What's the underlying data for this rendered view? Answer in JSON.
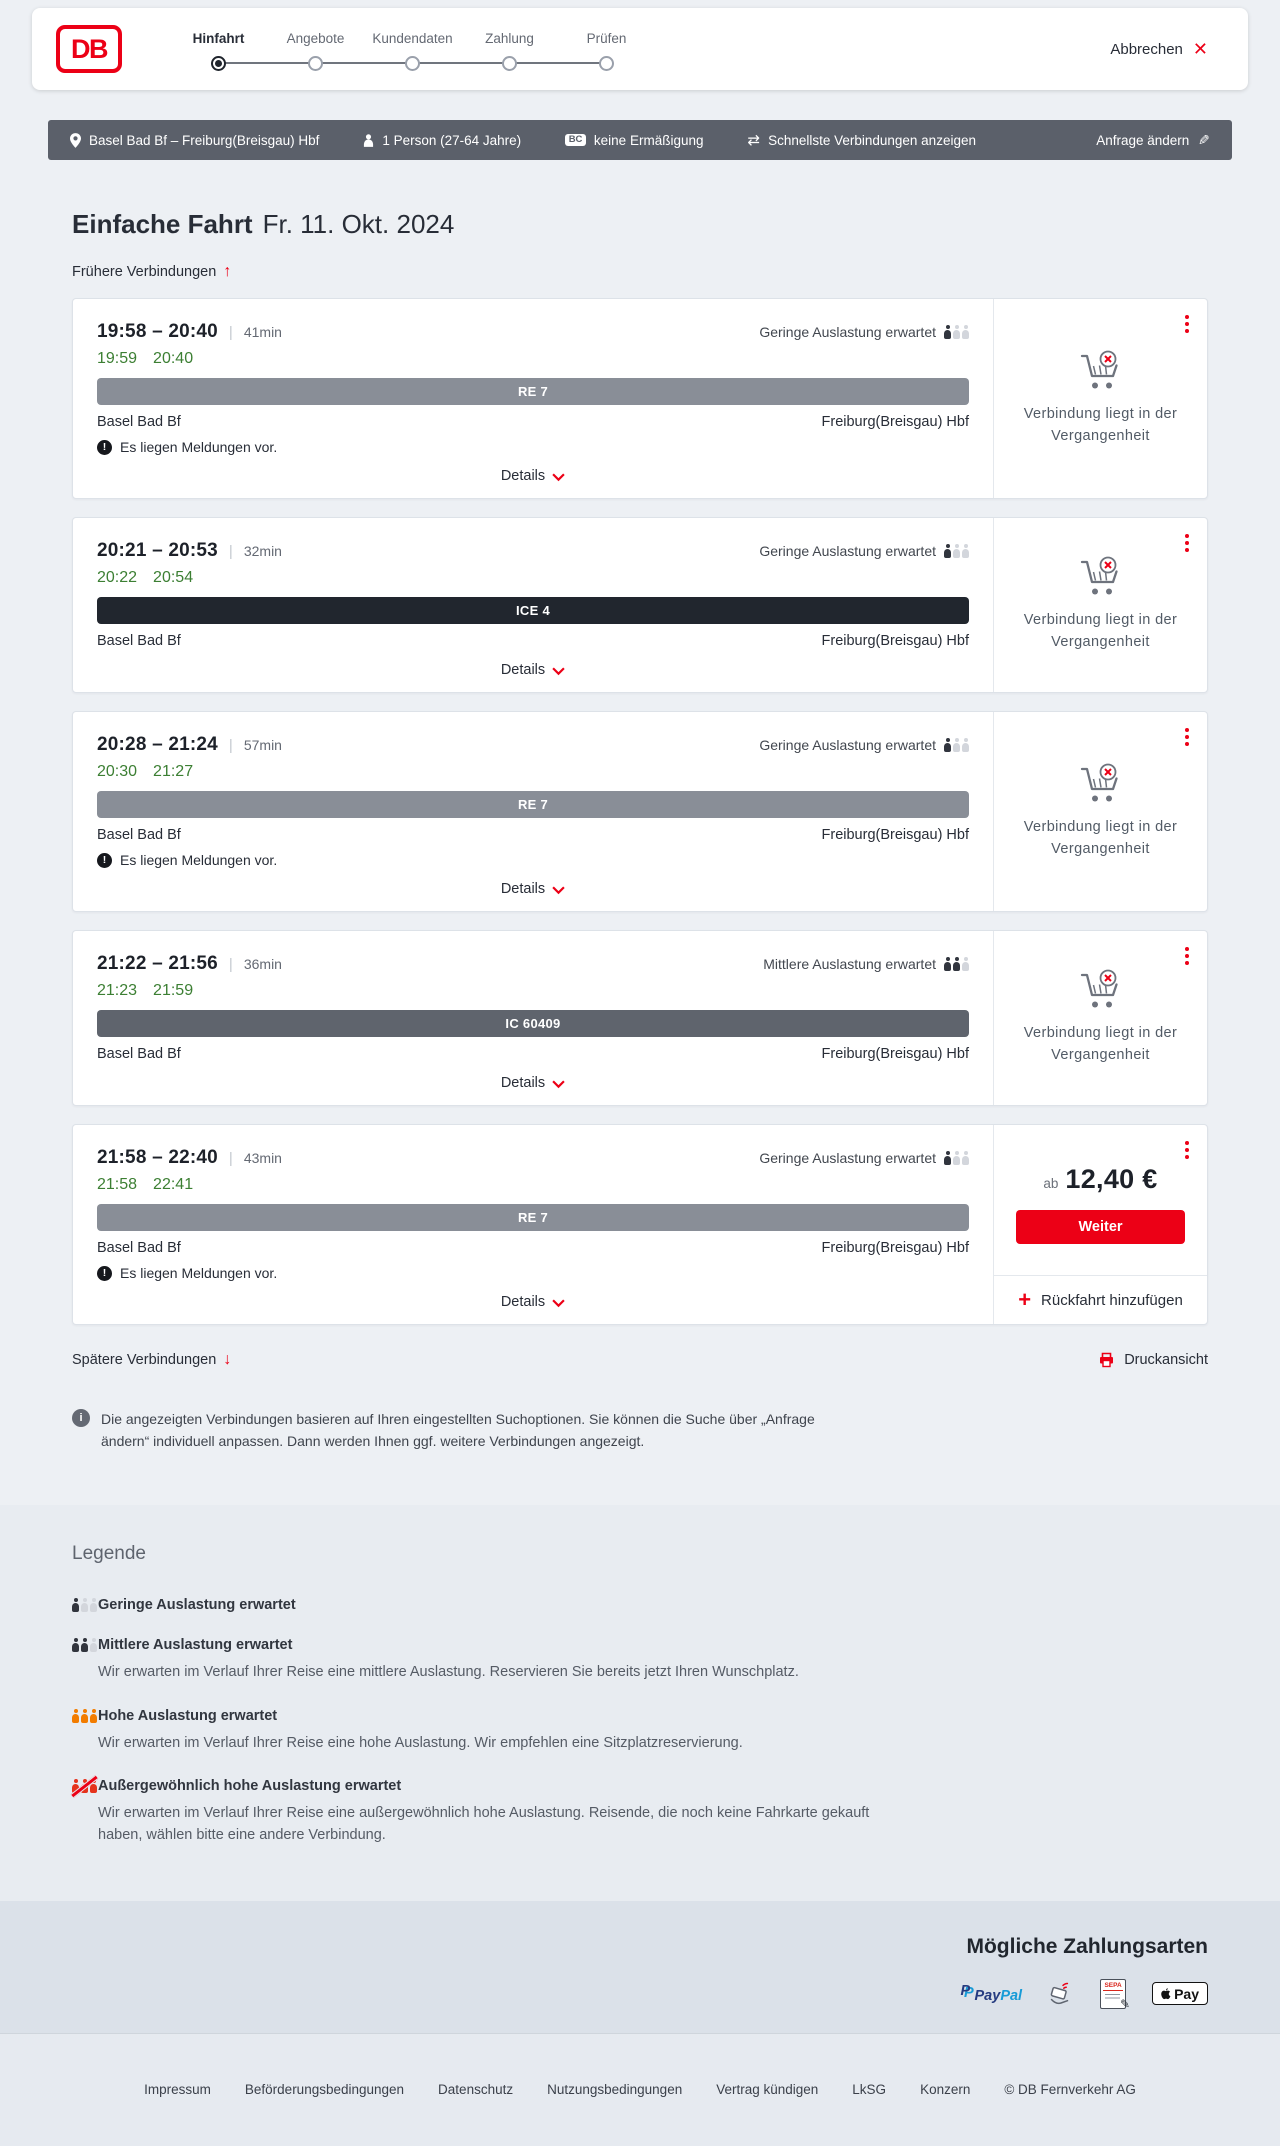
{
  "colors": {
    "db_red": "#ec0016",
    "dark": "#282d37",
    "green_ontime": "#3c7f33",
    "bar_re": "#898e97",
    "bar_ice": "#21262e",
    "bar_ic": "#5f646d",
    "occupancy_orange": "#f27c00",
    "querybar_bg": "#5b606a"
  },
  "icons": {
    "cancel_x": "✕",
    "swap": "⇄",
    "pencil": "✎",
    "earlier_arrow": "↑",
    "later_arrow": "↓",
    "plus": "+",
    "info": "i",
    "warning": "!",
    "sepa_pen": "✎"
  },
  "header": {
    "logo": "DB",
    "steps": [
      {
        "label": "Hinfahrt",
        "active": true
      },
      {
        "label": "Angebote"
      },
      {
        "label": "Kundendaten"
      },
      {
        "label": "Zahlung"
      },
      {
        "label": "Prüfen"
      }
    ],
    "cancel_label": "Abbrechen"
  },
  "querybar": {
    "route": "Basel Bad Bf – Freiburg(Breisgau) Hbf",
    "passengers": "1 Person (27-64 Jahre)",
    "bc_badge": "BC",
    "discount": "keine Ermäßigung",
    "fastest": "Schnellste Verbindungen anzeigen",
    "change_request": "Anfrage ändern"
  },
  "results": {
    "title": "Einfache Fahrt",
    "date": "Fr. 11. Okt. 2024",
    "earlier": "Frühere Verbindungen",
    "later": "Spätere Verbindungen",
    "print": "Druckansicht",
    "info_note": "Die angezeigten Verbindungen basieren auf Ihren eingestellten Suchoptionen. Sie können die Suche über „Anfrage ändern“ individuell anpassen. Dann werden Ihnen ggf. weitere Verbindungen angezeigt.",
    "connections": [
      {
        "time": "19:58 – 20:40",
        "duration": "41min",
        "occupancy": "Geringe Auslastung erwartet",
        "occ_level": 1,
        "rt_dep": "19:59",
        "rt_arr": "20:40",
        "train": "RE 7",
        "train_style": "gray",
        "from": "Basel Bad Bf",
        "to": "Freiburg(Breisgau) Hbf",
        "message": "Es liegen Meldungen vor.",
        "side_text": "Verbindung liegt in der Vergangenheit"
      },
      {
        "time": "20:21 – 20:53",
        "duration": "32min",
        "occupancy": "Geringe Auslastung erwartet",
        "occ_level": 1,
        "rt_dep": "20:22",
        "rt_arr": "20:54",
        "train": "ICE 4",
        "train_style": "dark",
        "from": "Basel Bad Bf",
        "to": "Freiburg(Breisgau) Hbf",
        "message": "",
        "side_text": "Verbindung liegt in der Vergangenheit"
      },
      {
        "time": "20:28 – 21:24",
        "duration": "57min",
        "occupancy": "Geringe Auslastung erwartet",
        "occ_level": 1,
        "rt_dep": "20:30",
        "rt_arr": "21:27",
        "train": "RE 7",
        "train_style": "gray",
        "from": "Basel Bad Bf",
        "to": "Freiburg(Breisgau) Hbf",
        "message": "Es liegen Meldungen vor.",
        "side_text": "Verbindung liegt in der Vergangenheit"
      },
      {
        "time": "21:22 – 21:56",
        "duration": "36min",
        "occupancy": "Mittlere Auslastung erwartet",
        "occ_level": 2,
        "rt_dep": "21:23",
        "rt_arr": "21:59",
        "train": "IC 60409",
        "train_style": "mid",
        "from": "Basel Bad Bf",
        "to": "Freiburg(Breisgau) Hbf",
        "message": "",
        "side_text": "Verbindung liegt in der Vergangenheit"
      },
      {
        "time": "21:58 – 22:40",
        "duration": "43min",
        "occupancy": "Geringe Auslastung erwartet",
        "occ_level": 1,
        "rt_dep": "21:58",
        "rt_arr": "22:41",
        "train": "RE 7",
        "train_style": "gray",
        "from": "Basel Bad Bf",
        "to": "Freiburg(Breisgau) Hbf",
        "message": "Es liegen Meldungen vor.",
        "price": true,
        "price_prefix": "ab",
        "price_value": "12,40 €",
        "cta": "Weiter",
        "add_return": "Rückfahrt hinzufügen"
      }
    ]
  },
  "ui": {
    "details": "Details"
  },
  "legend": {
    "title": "Legende",
    "items": [
      {
        "level": 1,
        "label": "Geringe Auslastung erwartet",
        "desc": ""
      },
      {
        "level": 2,
        "label": "Mittlere Auslastung erwartet",
        "desc": "Wir erwarten im Verlauf Ihrer Reise eine mittlere Auslastung. Reservieren Sie bereits jetzt Ihren Wunschplatz."
      },
      {
        "level": 3,
        "label": "Hohe Auslastung erwartet",
        "desc": "Wir erwarten im Verlauf Ihrer Reise eine hohe Auslastung. Wir empfehlen eine Sitzplatzreservierung."
      },
      {
        "level": 4,
        "label": "Außergewöhnlich hohe Auslastung erwartet",
        "desc": "Wir erwarten im Verlauf Ihrer Reise eine außergewöhnlich hohe Auslastung. Reisende, die noch keine Fahrkarte gekauft haben, wählen bitte eine andere Verbindung."
      }
    ]
  },
  "payment": {
    "title": "Mögliche Zahlungsarten",
    "paypal": {
      "mark": "P",
      "word_navy": "Pay",
      "word_blue": "Pal"
    },
    "sepa": "SEPA",
    "applepay": "Pay"
  },
  "footer": {
    "links": [
      "Impressum",
      "Beförderungsbedingungen",
      "Datenschutz",
      "Nutzungsbedingungen",
      "Vertrag kündigen",
      "LkSG",
      "Konzern"
    ],
    "copyright": "© DB Fernverkehr AG"
  }
}
